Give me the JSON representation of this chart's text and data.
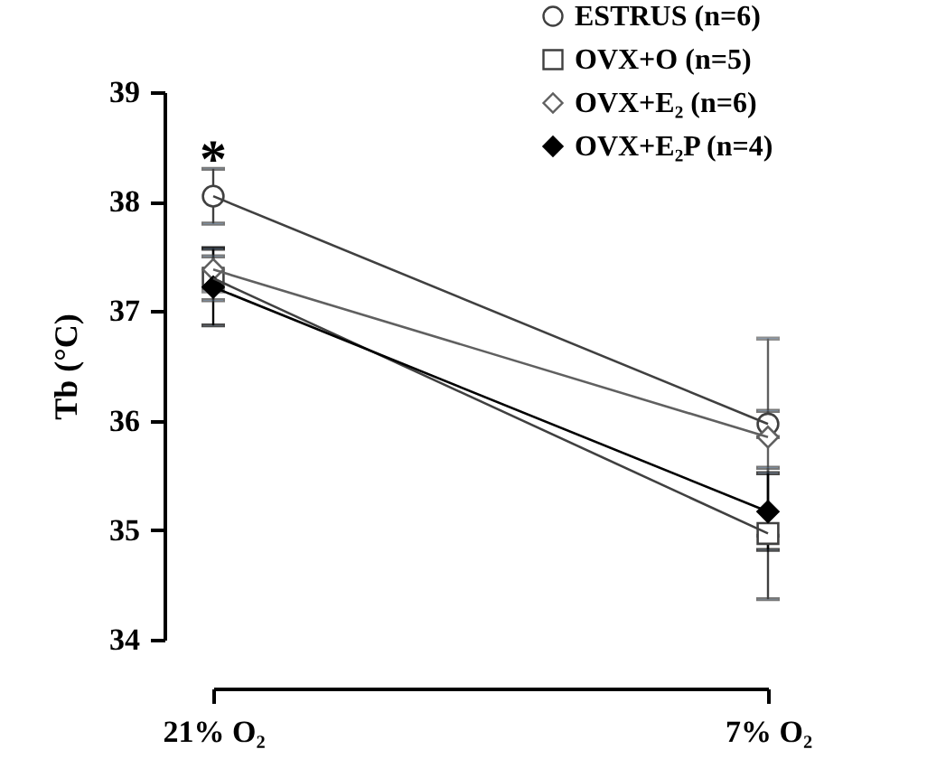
{
  "chart_data": {
    "type": "line",
    "ylabel": "Tb (°C)",
    "categories": [
      "21% O₂",
      "7% O₂"
    ],
    "ylim": [
      34,
      39
    ],
    "yticks": [
      34,
      35,
      36,
      37,
      38,
      39
    ],
    "grid": false,
    "legend": "top right",
    "series": [
      {
        "name": "ESTRUS (n=6)",
        "color": "#404040",
        "marker": "circle",
        "values": [
          38.05,
          35.97
        ],
        "errors": [
          0.25,
          0.12
        ]
      },
      {
        "name": "OVX+O (n=5)",
        "color": "#404040",
        "marker": "square",
        "values": [
          37.3,
          34.97
        ],
        "errors": [
          0.2,
          0.6
        ]
      },
      {
        "name": "OVX+E₂ (n=6)",
        "color": "#606060",
        "marker": "diamond",
        "values": [
          37.38,
          35.85
        ],
        "errors": [
          0.2,
          0.9
        ]
      },
      {
        "name": "OVX+E₂P (n=4)",
        "color": "#000000",
        "marker": "diamond",
        "values": [
          37.22,
          35.17
        ],
        "errors": [
          0.35,
          0.35
        ]
      }
    ],
    "annotations": [
      "*"
    ]
  }
}
